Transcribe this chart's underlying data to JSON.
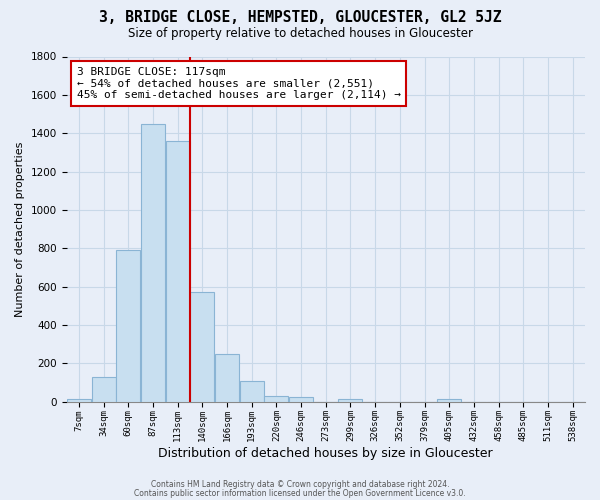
{
  "title": "3, BRIDGE CLOSE, HEMPSTED, GLOUCESTER, GL2 5JZ",
  "subtitle": "Size of property relative to detached houses in Gloucester",
  "xlabel": "Distribution of detached houses by size in Gloucester",
  "ylabel": "Number of detached properties",
  "bar_color": "#c8dff0",
  "bar_edgecolor": "#8ab4d4",
  "tick_labels": [
    "7sqm",
    "34sqm",
    "60sqm",
    "87sqm",
    "113sqm",
    "140sqm",
    "166sqm",
    "193sqm",
    "220sqm",
    "246sqm",
    "273sqm",
    "299sqm",
    "326sqm",
    "352sqm",
    "379sqm",
    "405sqm",
    "432sqm",
    "458sqm",
    "485sqm",
    "511sqm",
    "538sqm"
  ],
  "bar_values": [
    15,
    130,
    790,
    1450,
    1360,
    570,
    250,
    105,
    30,
    22,
    0,
    15,
    0,
    0,
    0,
    15,
    0,
    0,
    0,
    0,
    0
  ],
  "vline_x": 4,
  "vline_color": "#cc0000",
  "annotation_text": "3 BRIDGE CLOSE: 117sqm\n← 54% of detached houses are smaller (2,551)\n45% of semi-detached houses are larger (2,114) →",
  "annotation_box_edgecolor": "#cc0000",
  "annotation_box_facecolor": "white",
  "ylim": [
    0,
    1800
  ],
  "yticks": [
    0,
    200,
    400,
    600,
    800,
    1000,
    1200,
    1400,
    1600,
    1800
  ],
  "footer_line1": "Contains HM Land Registry data © Crown copyright and database right 2024.",
  "footer_line2": "Contains public sector information licensed under the Open Government Licence v3.0.",
  "grid_color": "#c8d8e8",
  "background_color": "#e8eef8"
}
